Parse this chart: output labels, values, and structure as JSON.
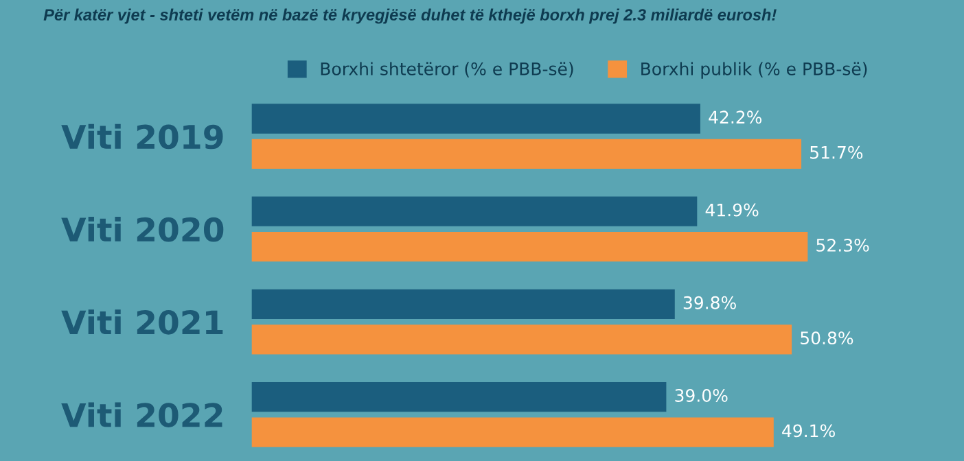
{
  "chart_data": {
    "type": "bar",
    "orientation": "horizontal",
    "title": "Për katër vjet - shteti vetëm në bazë të kryegjësë duhet të kthejë borxh prej 2.3 miliardë eurosh!",
    "categories": [
      "Viti 2019",
      "Viti 2020",
      "Viti 2021",
      "Viti 2022"
    ],
    "series": [
      {
        "name": "Borxhi shtetëror (% e PBB-së)",
        "color": "#1b5e7e",
        "values": [
          42.2,
          41.9,
          39.8,
          39.0
        ],
        "value_labels": [
          "42.2%",
          "41.9%",
          "39.8%",
          "39.0%"
        ]
      },
      {
        "name": "Borxhi publik (% e PBB-së)",
        "color": "#f5923e",
        "values": [
          51.7,
          52.3,
          50.8,
          49.1
        ],
        "value_labels": [
          "51.7%",
          "52.3%",
          "50.8%",
          "49.1%"
        ]
      }
    ],
    "xlim": [
      0,
      67
    ],
    "tick_labels": "y",
    "legend": "top",
    "grid": false
  }
}
